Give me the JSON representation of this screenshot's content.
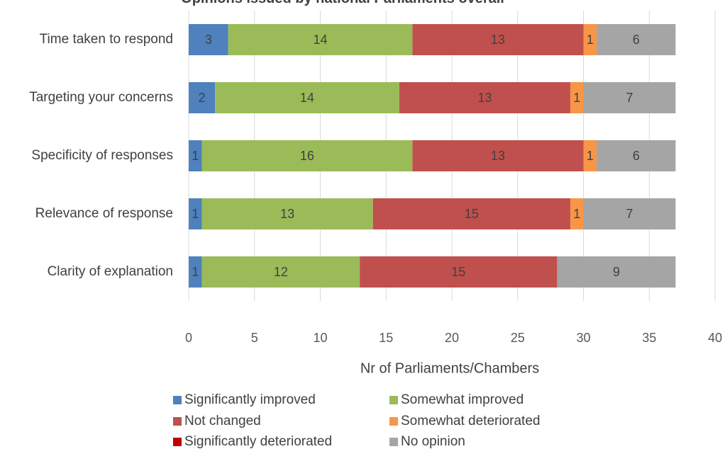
{
  "chart_data": {
    "type": "bar",
    "orientation": "horizontal",
    "stacked": true,
    "title": "Opinions issued by national Parliaments overall",
    "xlabel": "Nr of Parliaments/Chambers",
    "ylabel": "",
    "xlim": [
      0,
      40
    ],
    "x_ticks": [
      0,
      5,
      10,
      15,
      20,
      25,
      30,
      35,
      40
    ],
    "grid": "vertical",
    "legend_position": "bottom",
    "categories": [
      "Time taken to respond",
      "Targeting your concerns",
      "Specificity of responses",
      "Relevance of response",
      "Clarity of explanation"
    ],
    "series": [
      {
        "name": "Significantly improved",
        "color": "#4F81BD",
        "values": [
          3,
          2,
          1,
          1,
          1
        ]
      },
      {
        "name": "Somewhat improved",
        "color": "#9BBB59",
        "values": [
          14,
          14,
          16,
          13,
          12
        ]
      },
      {
        "name": "Not changed",
        "color": "#C0504D",
        "values": [
          13,
          13,
          13,
          15,
          15
        ]
      },
      {
        "name": "Somewhat deteriorated",
        "color": "#F79646",
        "values": [
          1,
          1,
          1,
          1,
          0
        ]
      },
      {
        "name": "Significantly deteriorated",
        "color": "#C00000",
        "values": [
          0,
          0,
          0,
          0,
          0
        ]
      },
      {
        "name": "No opinion",
        "color": "#A5A5A5",
        "values": [
          6,
          7,
          6,
          7,
          9
        ]
      }
    ]
  }
}
